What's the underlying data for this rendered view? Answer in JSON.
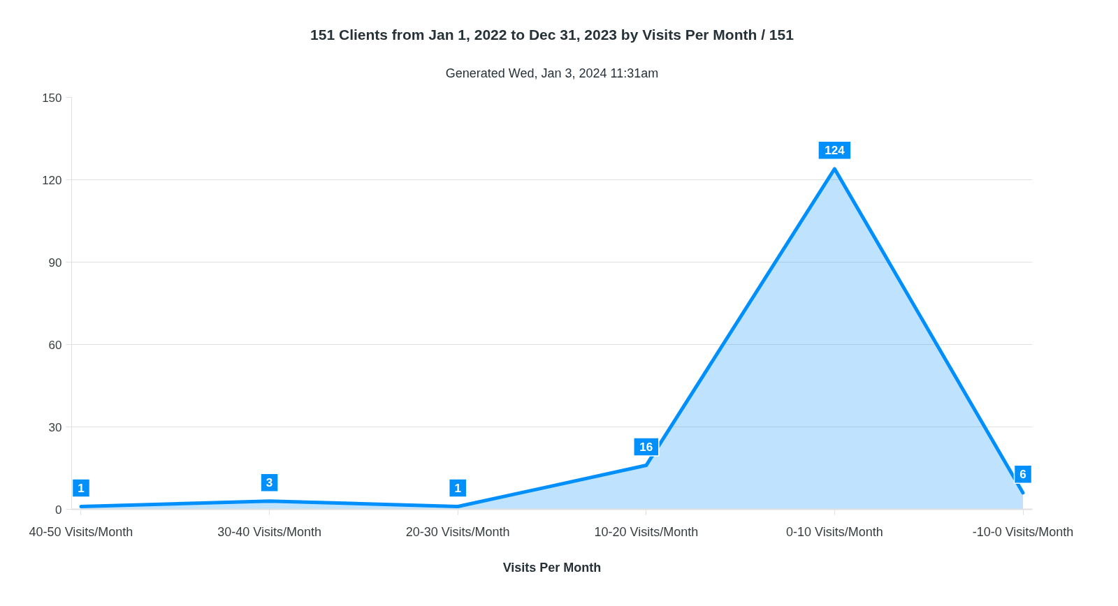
{
  "chart_data": {
    "type": "area",
    "title": "151 Clients from Jan 1, 2022 to Dec 31, 2023 by Visits Per Month / 151",
    "subtitle": "Generated Wed, Jan 3, 2024 11:31am",
    "xlabel": "Visits Per Month",
    "categories": [
      "40-50 Visits/Month",
      "30-40 Visits/Month",
      "20-30 Visits/Month",
      "10-20 Visits/Month",
      "0-10 Visits/Month",
      "-10-0 Visits/Month"
    ],
    "values": [
      1,
      3,
      1,
      16,
      124,
      6
    ],
    "color": "#008ffb",
    "ylim": [
      0,
      150
    ],
    "yticks": [
      0,
      30,
      60,
      90,
      120,
      150
    ],
    "grid": "y",
    "data_labels": true
  }
}
